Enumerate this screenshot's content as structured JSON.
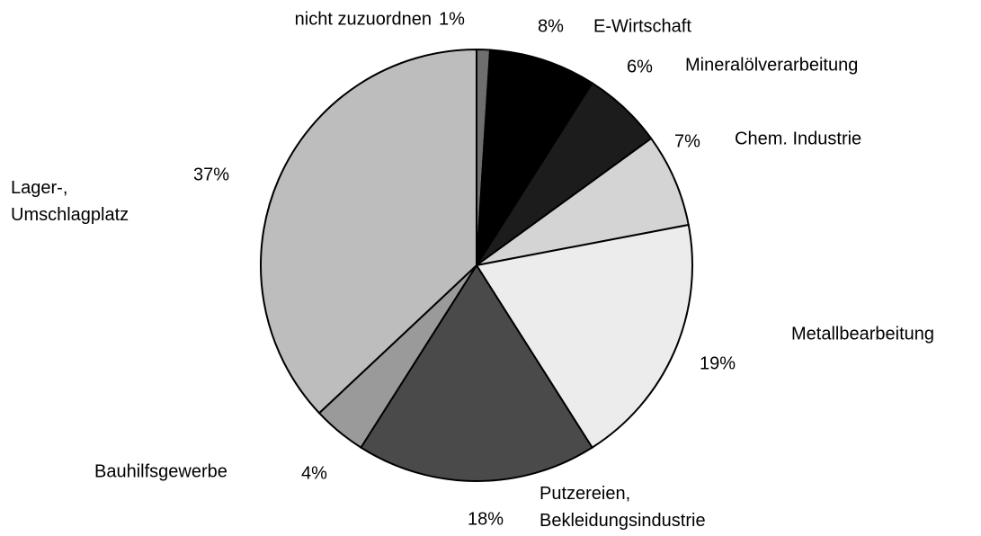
{
  "chart_data": {
    "type": "pie",
    "categories": [
      "nicht zuzuordnen",
      "E-Wirtschaft",
      "Mineralölverarbeitung",
      "Chem. Industrie",
      "Metallbearbeitung",
      "Putzereien, Bekleidungsindustrie",
      "Bauhilfsgewerbe",
      "Lager-, Umschlagplatz"
    ],
    "values": [
      1,
      8,
      6,
      7,
      19,
      18,
      4,
      37
    ],
    "value_labels": [
      "1%",
      "8%",
      "6%",
      "7%",
      "19%",
      "18%",
      "4%",
      "37%"
    ],
    "colors": [
      "#6e6e6e",
      "#000000",
      "#1c1c1c",
      "#d4d4d4",
      "#ececec",
      "#4a4a4a",
      "#9a9a9a",
      "#bdbdbd"
    ]
  }
}
